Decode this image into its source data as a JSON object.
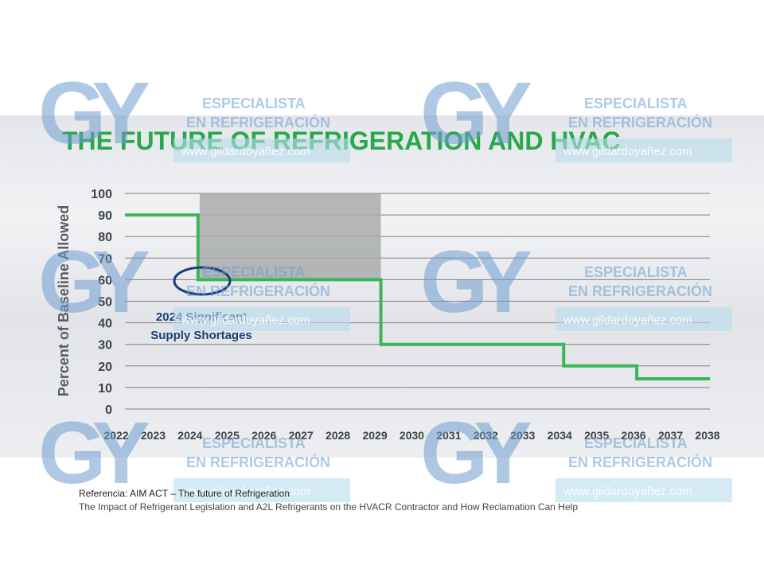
{
  "chart_data": {
    "type": "line",
    "title": "THE FUTURE OF REFRIGERATION AND HVAC",
    "ylabel": "Percent of Baseline Allowed",
    "xlabel": "",
    "ylim": [
      0,
      100
    ],
    "yticks": [
      0,
      10,
      20,
      30,
      40,
      50,
      60,
      70,
      80,
      90,
      100
    ],
    "xticks": [
      "2022",
      "2023",
      "2024",
      "2025",
      "2026",
      "2027",
      "2028",
      "2029",
      "2030",
      "2031",
      "2032",
      "2033",
      "2034",
      "2035",
      "2036",
      "2037",
      "2038"
    ],
    "grid": true,
    "series": [
      {
        "step_points": [
          [
            2022,
            90
          ],
          [
            2024,
            90
          ],
          [
            2024,
            60
          ],
          [
            2029,
            60
          ],
          [
            2029,
            30
          ],
          [
            2034,
            30
          ],
          [
            2034,
            20
          ],
          [
            2036,
            20
          ],
          [
            2036,
            14
          ],
          [
            2038,
            14
          ]
        ],
        "color": "#3bb55a"
      }
    ],
    "shaded_region": {
      "x": [
        2024,
        2029
      ],
      "y": [
        60,
        100
      ],
      "color": "#a9abad"
    },
    "annotation": {
      "line1": "2024 Significant",
      "line2": "Supply Shortages",
      "color": "#1a3e78"
    }
  },
  "watermark": {
    "logo": "GY",
    "line1": "ESPECIALISTA",
    "line2": "EN REFRIGERACIÓN",
    "url": "www.gildardoyañez.com"
  },
  "caption": {
    "line1": "Referencia: AIM ACT – The future of Refrigeration",
    "line2": "The Impact of Refrigerant Legislation and A2L Refrigerants on the HVACR Contractor and How Reclamation Can Help"
  }
}
